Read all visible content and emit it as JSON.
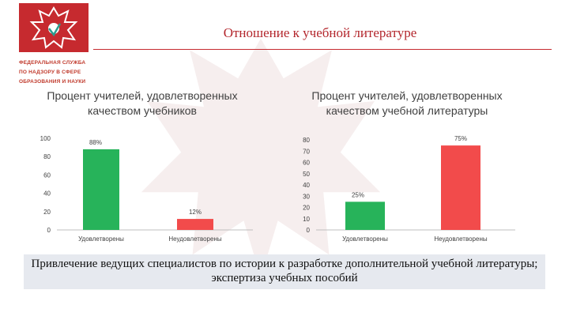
{
  "header": {
    "title": "Отношение к учебной литературе",
    "org_lines": [
      "ФЕДЕРАЛЬНАЯ СЛУЖБА",
      "ПО НАДЗОРУ В СФЕРЕ",
      "ОБРАЗОВАНИЯ И НАУКИ"
    ],
    "brand_color": "#c62a2f",
    "logo_icon": "double-headed-eagle-emblem"
  },
  "colors": {
    "satisfied": "#27b35a",
    "unsatisfied": "#f24b4b"
  },
  "chart_data": [
    {
      "type": "bar",
      "title": "Процент учителей, удовлетворенных качеством учебников",
      "categories": [
        "Удовлетворены",
        "Неудовлетворены"
      ],
      "values": [
        88,
        12
      ],
      "labels": [
        "88%",
        "12%"
      ],
      "ylim": [
        0,
        100
      ],
      "yticks": [
        0,
        20,
        40,
        60,
        80,
        100
      ],
      "grid": false,
      "legend": "none"
    },
    {
      "type": "bar",
      "title": "Процент учителей, удовлетворенных качеством учебной литературы",
      "categories": [
        "Удовлетворены",
        "Неудовлетворены"
      ],
      "values": [
        25,
        75
      ],
      "labels": [
        "25%",
        "75%"
      ],
      "ylim": [
        0,
        80
      ],
      "yticks": [
        0,
        10,
        20,
        30,
        40,
        50,
        60,
        70,
        80
      ],
      "grid": false,
      "legend": "none"
    }
  ],
  "banner": {
    "text": "Привлечение ведущих специалистов по истории к разработке дополнительной учебной литературы; экспертиза учебных пособий"
  }
}
